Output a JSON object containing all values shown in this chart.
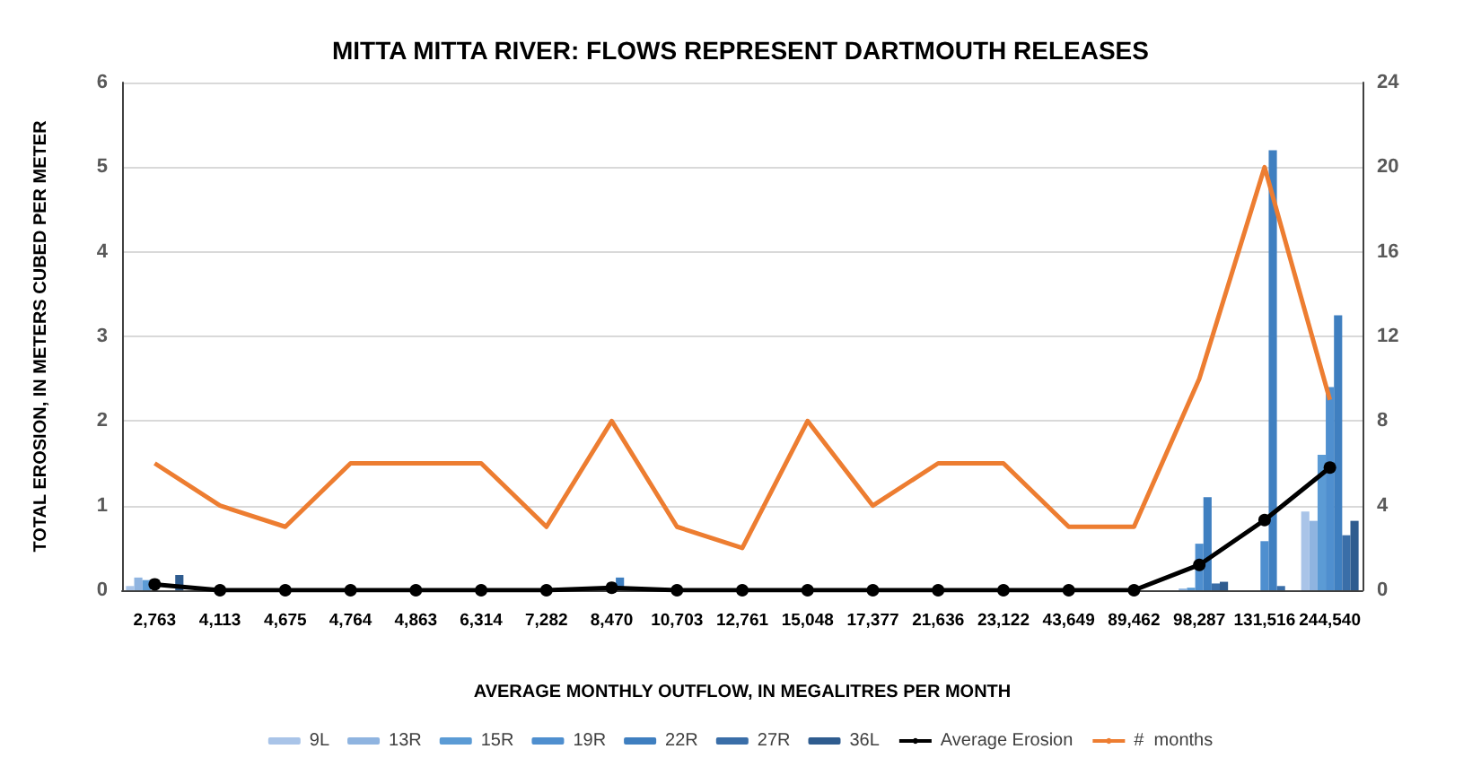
{
  "chart_data": {
    "type": "bar",
    "title": "MITTA MITTA RIVER: FLOWS REPRESENT DARTMOUTH RELEASES",
    "xlabel": "AVERAGE MONTHLY OUTFLOW, IN MEGALITRES PER MONTH",
    "ylabel": "TOTAL EROSION, IN METERS CUBED PER METER",
    "categories": [
      "2,763",
      "4,113",
      "4,675",
      "4,764",
      "4,863",
      "6,314",
      "7,282",
      "8,470",
      "10,703",
      "12,761",
      "15,048",
      "17,377",
      "21,636",
      "23,122",
      "43,649",
      "89,462",
      "98,287",
      "131,516",
      "244,540"
    ],
    "series": [
      {
        "name": "9L",
        "color": "#a9c4e8",
        "values": [
          0.05,
          0,
          0,
          0,
          0,
          0,
          0,
          0,
          0,
          0,
          0,
          0,
          0,
          0,
          0,
          0,
          null,
          null,
          0.93
        ]
      },
      {
        "name": "13R",
        "color": "#8fb4e0",
        "values": [
          0.15,
          0,
          0,
          0,
          0,
          0,
          0,
          0,
          0,
          0,
          0,
          0,
          0,
          0,
          0,
          0,
          0.02,
          0,
          0.82
        ]
      },
      {
        "name": "15R",
        "color": "#5b9bd5",
        "values": [
          0.12,
          0,
          0,
          0,
          0,
          0,
          0,
          0,
          0,
          0,
          0,
          0,
          0,
          0,
          0,
          0,
          0.03,
          0,
          1.6
        ]
      },
      {
        "name": "19R",
        "color": "#4f8fcf",
        "values": [
          null,
          0,
          0,
          0,
          0,
          0,
          0,
          null,
          0,
          0,
          0,
          0,
          0,
          0,
          0,
          0,
          0.55,
          0.58,
          2.4
        ]
      },
      {
        "name": "22R",
        "color": "#3f7fc0",
        "values": [
          null,
          0,
          0,
          0,
          0,
          0,
          0,
          0.15,
          0,
          0,
          0,
          0,
          0,
          0,
          0,
          0,
          1.1,
          5.2,
          3.25
        ]
      },
      {
        "name": "27R",
        "color": "#3a6ea8",
        "values": [
          null,
          0,
          0,
          0,
          0,
          0,
          0,
          0,
          0,
          0,
          0,
          0,
          0,
          0,
          0,
          0,
          0.08,
          0.05,
          0.65
        ]
      },
      {
        "name": "36L",
        "color": "#2f5c8f",
        "values": [
          0.18,
          0,
          0,
          0,
          0,
          0,
          0,
          0,
          0,
          0,
          0,
          0,
          0,
          0,
          0,
          0,
          0.1,
          0,
          0.82
        ]
      },
      {
        "name": "Average Erosion",
        "type": "line",
        "color": "#000000",
        "marker": "circle",
        "values": [
          0.07,
          0,
          0,
          0,
          0,
          0,
          0,
          0.03,
          0,
          0,
          0,
          0,
          0,
          0,
          0,
          0,
          0.3,
          0.83,
          1.45
        ]
      },
      {
        "name": "#  months",
        "type": "line",
        "color": "#ed7d31",
        "axis": "y2",
        "values": [
          6,
          4,
          3,
          6,
          6,
          6,
          3,
          8,
          3,
          2,
          8,
          4,
          6,
          6,
          3,
          3,
          10,
          20,
          9
        ]
      }
    ],
    "ylim": [
      0,
      6
    ],
    "yticks": [
      0,
      1,
      2,
      3,
      4,
      5,
      6
    ],
    "y2lim": [
      0,
      24
    ],
    "y2ticks": [
      0,
      4,
      8,
      12,
      16,
      20,
      24
    ],
    "grid": "y",
    "legend": "bottom"
  }
}
